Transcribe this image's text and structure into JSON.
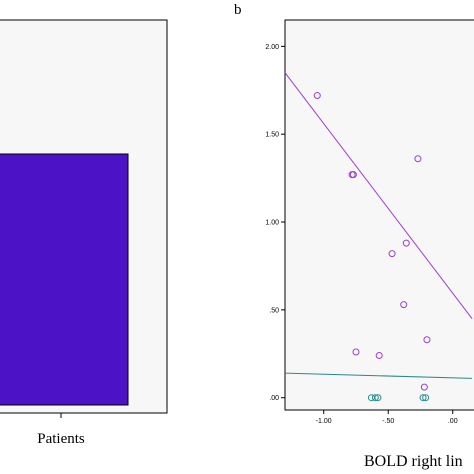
{
  "panel_labels": {
    "b": "b"
  },
  "chart_data": [
    {
      "type": "bar",
      "categories": [
        "Patients"
      ],
      "values": [
        null
      ],
      "colors": {
        "bar": "#4b12c6",
        "plot_bg": "#f7f7f7"
      }
    },
    {
      "type": "scatter",
      "xlabel": "BOLD right lin",
      "xlim": [
        -1.3,
        0.25
      ],
      "ylim": [
        -0.07,
        2.15
      ],
      "x_ticks": [
        "-1.00",
        "-.50",
        ".00"
      ],
      "y_ticks": [
        "2.00",
        "1.50",
        "1.00",
        ".50",
        ".00"
      ],
      "series": [
        {
          "color": "#9a3fd4",
          "points": [
            [
              -1.05,
              1.72
            ],
            [
              -0.78,
              1.27
            ],
            [
              -0.77,
              1.27
            ],
            [
              -0.27,
              1.36
            ],
            [
              -0.36,
              0.88
            ],
            [
              -0.47,
              0.82
            ],
            [
              -0.38,
              0.53
            ],
            [
              -0.2,
              0.33
            ],
            [
              -0.75,
              0.26
            ],
            [
              -0.57,
              0.24
            ],
            [
              -0.22,
              0.06
            ]
          ],
          "fit": {
            "x": [
              -1.3,
              0.15
            ],
            "y": [
              1.85,
              0.45
            ]
          }
        },
        {
          "color": "#2a8a8a",
          "points": [
            [
              -0.63,
              0.0
            ],
            [
              -0.6,
              0.0
            ],
            [
              -0.58,
              0.0
            ],
            [
              -0.23,
              0.0
            ],
            [
              -0.21,
              0.0
            ]
          ],
          "fit": {
            "x": [
              -1.3,
              0.15
            ],
            "y": [
              0.14,
              0.11
            ]
          }
        }
      ]
    }
  ]
}
